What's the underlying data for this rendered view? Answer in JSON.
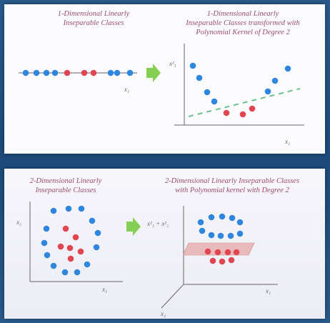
{
  "top_panel": {
    "left_title_line1": "1-Dimensional Linearly",
    "left_title_line2": "Inseparable Classes",
    "right_title_line1": "1-Dimensional Linearly",
    "right_title_line2": "Inseparable Classes transformed with",
    "right_title_line3": "Polynomial Kernel of Degree 2",
    "axis_x1": "x₁",
    "axis_y_right": "x²₁",
    "axis_x_right": "x₁"
  },
  "bottom_panel": {
    "left_title_line1": "2-Dimensional Linearly",
    "left_title_line2": "Inseparable Classes",
    "right_title_line1": "2-Dimensional Linearly Inseparable Classes",
    "right_title_line2": "with Polynomial kernel with Degree 2",
    "axis_y_left": "x₂",
    "axis_x_left": "x₁",
    "z_label": "x²₁ + x²₂",
    "axis_x_3d": "x₁",
    "axis_y_3d": "x₂"
  },
  "colors": {
    "class_blue": "#2f86dd",
    "class_red": "#e24552",
    "arrow": "#86cf55",
    "separator": "#70c08a",
    "caption": "#9b4d6a",
    "plane": "#e7b0b0"
  },
  "icons": [
    "right-arrow-icon",
    "right-arrow-icon"
  ]
}
